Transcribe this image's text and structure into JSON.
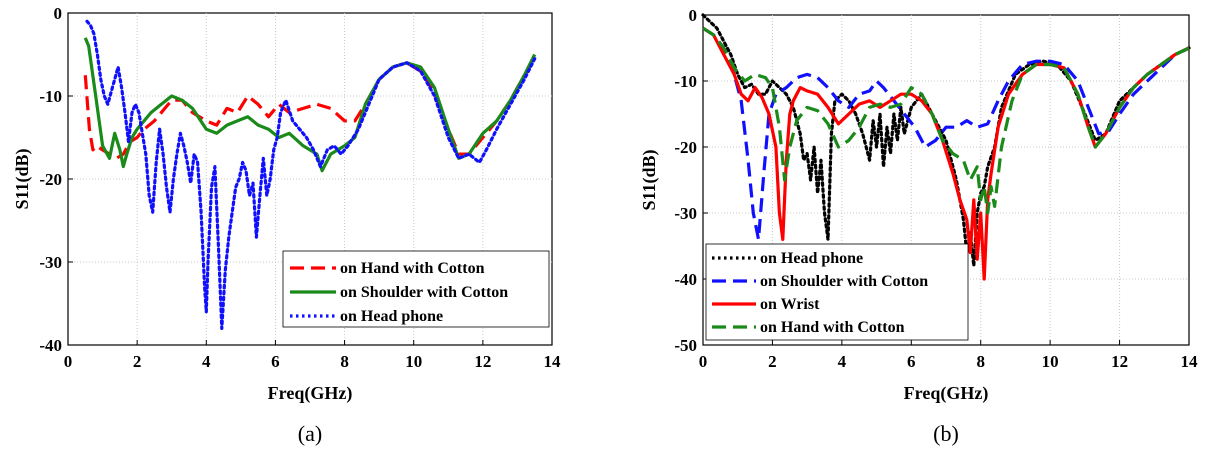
{
  "chart_data": [
    {
      "type": "line",
      "caption": "(a)",
      "xlabel": "Freq(GHz)",
      "ylabel": "S11(dB)",
      "xlim": [
        0,
        14
      ],
      "ylim": [
        -40,
        0
      ],
      "xticks": [
        0,
        2,
        4,
        6,
        8,
        10,
        12,
        14
      ],
      "yticks": [
        0,
        -10,
        -20,
        -30,
        -40
      ],
      "grid": true,
      "legend_position": "bottom-right",
      "series": [
        {
          "name": "on Hand with Cotton",
          "color": "#ff0000",
          "style": "dashed",
          "x": [
            0.5,
            0.62,
            0.72,
            0.82,
            1.0,
            1.2,
            1.4,
            1.6,
            1.8,
            2.0,
            2.2,
            2.5,
            2.8,
            3.0,
            3.3,
            3.6,
            4.0,
            4.3,
            4.6,
            4.9,
            5.2,
            5.5,
            5.8,
            6.1,
            6.4,
            6.8,
            7.2,
            7.6,
            8.0,
            8.3,
            8.6,
            9.0,
            9.4,
            9.8,
            10.2,
            10.6,
            11.0,
            11.3,
            11.6,
            12.0,
            12.4,
            12.8,
            13.2,
            13.5
          ],
          "y": [
            -7.5,
            -14,
            -16.5,
            -16,
            -16.5,
            -17,
            -17.5,
            -17,
            -15.5,
            -15,
            -14,
            -13,
            -11.5,
            -10.5,
            -10.5,
            -12,
            -13,
            -13.5,
            -11.5,
            -12,
            -10,
            -11,
            -12.5,
            -11,
            -12,
            -11.5,
            -11,
            -11.5,
            -13,
            -13,
            -11,
            -8,
            -6.5,
            -6,
            -7,
            -9.5,
            -14,
            -17,
            -17,
            -15,
            -13,
            -10.5,
            -7.5,
            -5.5
          ]
        },
        {
          "name": "on Shoulder with Cotton",
          "color": "#1a8a1a",
          "style": "solid",
          "x": [
            0.5,
            0.6,
            0.7,
            0.8,
            1.0,
            1.2,
            1.35,
            1.5,
            1.6,
            1.7,
            1.85,
            2.0,
            2.2,
            2.4,
            2.7,
            3.0,
            3.3,
            3.6,
            4.0,
            4.3,
            4.6,
            4.9,
            5.2,
            5.5,
            5.8,
            6.1,
            6.4,
            6.8,
            7.2,
            7.35,
            7.6,
            8.0,
            8.3,
            8.6,
            9.0,
            9.4,
            9.8,
            10.2,
            10.6,
            11.0,
            11.3,
            11.6,
            12.0,
            12.4,
            12.8,
            13.2,
            13.5
          ],
          "y": [
            -3,
            -4,
            -7,
            -10,
            -16,
            -17.5,
            -14.5,
            -16.5,
            -18.5,
            -17,
            -15,
            -14,
            -13,
            -12,
            -11,
            -10,
            -10.5,
            -11.5,
            -14,
            -14.5,
            -13.5,
            -13,
            -12.5,
            -13.5,
            -14,
            -15,
            -14.5,
            -16,
            -17,
            -19,
            -17,
            -16,
            -15,
            -11,
            -8,
            -6.5,
            -6,
            -6.5,
            -9,
            -14,
            -17.5,
            -17,
            -14.5,
            -13,
            -10.5,
            -7.5,
            -5
          ]
        },
        {
          "name": "on Head phone",
          "color": "#1010ff",
          "style": "dotted",
          "x": [
            0.55,
            0.65,
            0.75,
            0.85,
            0.95,
            1.05,
            1.15,
            1.25,
            1.35,
            1.45,
            1.55,
            1.65,
            1.75,
            1.85,
            1.95,
            2.05,
            2.15,
            2.25,
            2.35,
            2.45,
            2.55,
            2.65,
            2.75,
            2.85,
            2.95,
            3.05,
            3.15,
            3.25,
            3.35,
            3.45,
            3.55,
            3.65,
            3.75,
            3.85,
            3.95,
            4.0,
            4.05,
            4.15,
            4.25,
            4.35,
            4.45,
            4.55,
            4.65,
            4.75,
            4.85,
            4.95,
            5.05,
            5.15,
            5.25,
            5.35,
            5.45,
            5.55,
            5.65,
            5.75,
            5.85,
            5.95,
            6.05,
            6.15,
            6.3,
            6.5,
            6.7,
            6.9,
            7.1,
            7.3,
            7.5,
            7.7,
            7.9,
            8.1,
            8.4,
            8.7,
            9.0,
            9.4,
            9.8,
            10.2,
            10.6,
            11.0,
            11.3,
            11.6,
            11.9,
            12.1,
            12.4,
            12.8,
            13.2,
            13.5
          ],
          "y": [
            -1,
            -1.5,
            -2.5,
            -5,
            -8,
            -10,
            -11,
            -9.5,
            -8,
            -6.5,
            -9,
            -12,
            -15.5,
            -12,
            -11,
            -12,
            -14.5,
            -17,
            -22,
            -24,
            -18,
            -14,
            -17,
            -21,
            -24,
            -20,
            -17,
            -14.5,
            -16,
            -18,
            -20.5,
            -17,
            -18,
            -24,
            -33,
            -36,
            -30,
            -21,
            -18.5,
            -28,
            -38,
            -31,
            -27,
            -24,
            -21,
            -20,
            -18,
            -19,
            -22,
            -20.5,
            -27,
            -22,
            -17.5,
            -22,
            -20,
            -16.5,
            -15,
            -12,
            -10.5,
            -13,
            -14,
            -15,
            -16.5,
            -18.5,
            -16.5,
            -16,
            -17,
            -16,
            -14,
            -11,
            -8,
            -6.5,
            -6,
            -7,
            -10,
            -15,
            -17.5,
            -17,
            -18,
            -16.5,
            -14,
            -11,
            -8,
            -5.5
          ]
        }
      ]
    },
    {
      "type": "line",
      "caption": "(b)",
      "xlabel": "Freq(GHz)",
      "ylabel": "S11(dB)",
      "xlim": [
        0,
        14
      ],
      "ylim": [
        -50,
        0
      ],
      "xticks": [
        0,
        2,
        4,
        6,
        8,
        10,
        12,
        14
      ],
      "yticks": [
        0,
        -10,
        -20,
        -30,
        -40,
        -50
      ],
      "grid": true,
      "legend_position": "bottom-left",
      "series": [
        {
          "name": "on Head phone",
          "color": "#000000",
          "style": "dotted",
          "x": [
            0.0,
            0.2,
            0.4,
            0.6,
            0.8,
            1.0,
            1.2,
            1.4,
            1.6,
            1.8,
            2.0,
            2.2,
            2.4,
            2.6,
            2.8,
            2.9,
            3.0,
            3.1,
            3.2,
            3.3,
            3.4,
            3.5,
            3.6,
            3.7,
            3.8,
            4.0,
            4.2,
            4.4,
            4.6,
            4.8,
            4.9,
            5.0,
            5.1,
            5.2,
            5.3,
            5.4,
            5.5,
            5.6,
            5.7,
            5.8,
            6.0,
            6.3,
            6.6,
            7.0,
            7.3,
            7.5,
            7.6,
            7.7,
            7.8,
            7.9,
            8.0,
            8.1,
            8.2,
            8.4,
            8.6,
            9.0,
            9.4,
            9.8,
            10.2,
            10.6,
            11.0,
            11.3,
            11.6,
            12.0,
            12.4,
            12.8,
            13.2,
            13.6,
            14.0
          ],
          "y": [
            0,
            -1,
            -2,
            -4,
            -6,
            -9,
            -11,
            -10.5,
            -12,
            -12,
            -10,
            -11,
            -12,
            -14,
            -18,
            -22,
            -21,
            -25,
            -20,
            -27,
            -22,
            -30,
            -34,
            -18,
            -13,
            -12,
            -13,
            -15,
            -18,
            -22,
            -16,
            -20,
            -15,
            -23,
            -17,
            -21,
            -15,
            -19,
            -14,
            -18,
            -14,
            -12,
            -15,
            -19,
            -25,
            -31,
            -36,
            -33,
            -38,
            -30,
            -27,
            -26,
            -23,
            -20,
            -14,
            -9,
            -7.5,
            -7,
            -7.5,
            -10,
            -15,
            -19,
            -18,
            -13,
            -11,
            -9,
            -7.5,
            -6,
            -5
          ]
        },
        {
          "name": "on Shoulder with Cotton",
          "color": "#1010ff",
          "style": "dashed",
          "x": [
            0.0,
            0.3,
            0.6,
            0.9,
            1.1,
            1.3,
            1.45,
            1.6,
            1.75,
            1.9,
            2.1,
            2.4,
            2.7,
            3.0,
            3.3,
            3.6,
            3.9,
            4.2,
            4.5,
            4.8,
            5.0,
            5.2,
            5.5,
            5.8,
            6.1,
            6.4,
            6.7,
            7.0,
            7.3,
            7.6,
            7.9,
            8.2,
            8.5,
            8.8,
            9.2,
            9.6,
            10.0,
            10.4,
            10.8,
            11.1,
            11.4,
            11.7,
            12.0,
            12.4,
            12.8,
            13.2,
            13.6,
            14.0
          ],
          "y": [
            -2,
            -3,
            -5,
            -9,
            -13,
            -22,
            -30,
            -34,
            -24,
            -15,
            -12,
            -11,
            -9.5,
            -9,
            -9.5,
            -11,
            -13,
            -14,
            -12,
            -11.5,
            -10,
            -11,
            -13,
            -15,
            -17,
            -20,
            -19,
            -17,
            -17,
            -16,
            -17,
            -16.5,
            -13,
            -10,
            -7.5,
            -7,
            -7,
            -7.5,
            -10,
            -14,
            -18,
            -17.5,
            -15,
            -12,
            -10,
            -8,
            -6,
            -5
          ]
        },
        {
          "name": "on Wrist",
          "color": "#ff0000",
          "style": "solid",
          "x": [
            0.0,
            0.3,
            0.6,
            0.9,
            1.1,
            1.3,
            1.5,
            1.7,
            1.9,
            2.1,
            2.2,
            2.3,
            2.4,
            2.5,
            2.6,
            2.8,
            3.0,
            3.3,
            3.6,
            3.9,
            4.2,
            4.5,
            4.8,
            5.1,
            5.4,
            5.7,
            6.0,
            6.3,
            6.6,
            6.9,
            7.2,
            7.4,
            7.6,
            7.7,
            7.8,
            7.9,
            8.0,
            8.1,
            8.2,
            8.3,
            8.5,
            8.8,
            9.2,
            9.6,
            10.0,
            10.4,
            10.8,
            11.1,
            11.3,
            11.6,
            12.0,
            12.4,
            12.8,
            13.2,
            13.6,
            14.0
          ],
          "y": [
            -2,
            -3,
            -6,
            -9,
            -12,
            -13,
            -11,
            -12.5,
            -15,
            -20,
            -30,
            -34,
            -22,
            -15,
            -13,
            -11,
            -11.5,
            -12,
            -14,
            -16.5,
            -15,
            -13.5,
            -13,
            -14,
            -13,
            -12,
            -12,
            -13,
            -15,
            -19,
            -24,
            -28,
            -31,
            -36,
            -28,
            -37,
            -30,
            -40,
            -28,
            -24,
            -17,
            -12,
            -9,
            -7.5,
            -7.5,
            -8,
            -12,
            -17,
            -20,
            -18,
            -14,
            -11,
            -9,
            -7.5,
            -6,
            -5
          ]
        },
        {
          "name": "on Hand with Cotton",
          "color": "#1a8a1a",
          "style": "dashed",
          "x": [
            0.0,
            0.3,
            0.6,
            0.9,
            1.2,
            1.5,
            1.8,
            2.0,
            2.2,
            2.35,
            2.5,
            2.7,
            3.0,
            3.3,
            3.6,
            3.9,
            4.2,
            4.5,
            4.8,
            5.1,
            5.4,
            5.7,
            6.0,
            6.3,
            6.6,
            6.9,
            7.2,
            7.5,
            7.7,
            7.9,
            8.0,
            8.1,
            8.2,
            8.3,
            8.4,
            8.6,
            8.9,
            9.2,
            9.6,
            10.0,
            10.4,
            10.8,
            11.1,
            11.3,
            11.6,
            12.0,
            12.4,
            12.8,
            13.2,
            13.6,
            14.0
          ],
          "y": [
            -2,
            -3,
            -5,
            -8,
            -10,
            -9,
            -9.5,
            -11,
            -17,
            -25,
            -20,
            -16,
            -14,
            -14.5,
            -16.5,
            -20,
            -19,
            -17,
            -14,
            -13.5,
            -14,
            -13.5,
            -11,
            -12,
            -15,
            -19,
            -21,
            -22,
            -25,
            -23,
            -28,
            -26,
            -30,
            -26,
            -29,
            -20,
            -13,
            -9,
            -7.5,
            -7.5,
            -8,
            -12,
            -17,
            -20,
            -18,
            -14,
            -11,
            -9,
            -7.5,
            -6,
            -5
          ]
        }
      ]
    }
  ]
}
